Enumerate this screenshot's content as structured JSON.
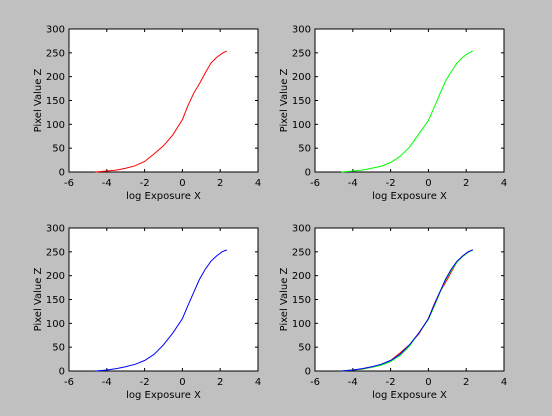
{
  "figure": {
    "background": "#c0c0c0"
  },
  "chart_data": [
    {
      "type": "line",
      "title": "",
      "xlabel": "log Exposure X",
      "ylabel": "Pixel Value Z",
      "xlim": [
        -6,
        4
      ],
      "ylim": [
        0,
        300
      ],
      "xticks": [
        -6,
        -4,
        -2,
        0,
        2,
        4
      ],
      "yticks": [
        0,
        50,
        100,
        150,
        200,
        250,
        300
      ],
      "grid": false,
      "series": [
        {
          "color": "#ff0000",
          "x": [
            -4.6,
            -4,
            -3.5,
            -3,
            -2.5,
            -2,
            -1.5,
            -1,
            -0.5,
            0,
            0.3,
            0.6,
            0.9,
            1.2,
            1.5,
            1.8,
            2.1,
            2.35
          ],
          "y": [
            0,
            2,
            4,
            8,
            13,
            22,
            38,
            55,
            78,
            110,
            140,
            165,
            185,
            207,
            228,
            240,
            249,
            254
          ]
        }
      ]
    },
    {
      "type": "line",
      "title": "",
      "xlabel": "log Exposure X",
      "ylabel": "Pixel Value Z",
      "xlim": [
        -6,
        4
      ],
      "ylim": [
        0,
        300
      ],
      "xticks": [
        -6,
        -4,
        -2,
        0,
        2,
        4
      ],
      "yticks": [
        0,
        50,
        100,
        150,
        200,
        250,
        300
      ],
      "grid": false,
      "series": [
        {
          "color": "#00ff00",
          "x": [
            -4.6,
            -4,
            -3.5,
            -3,
            -2.5,
            -2,
            -1.5,
            -1,
            -0.5,
            0,
            0.3,
            0.6,
            0.9,
            1.2,
            1.5,
            1.8,
            2.1,
            2.35
          ],
          "y": [
            0,
            2,
            4,
            8,
            12,
            20,
            33,
            52,
            80,
            108,
            135,
            163,
            190,
            210,
            228,
            240,
            249,
            254
          ]
        }
      ]
    },
    {
      "type": "line",
      "title": "",
      "xlabel": "log Exposure X",
      "ylabel": "Pixel Value Z",
      "xlim": [
        -6,
        4
      ],
      "ylim": [
        0,
        300
      ],
      "xticks": [
        -6,
        -4,
        -2,
        0,
        2,
        4
      ],
      "yticks": [
        0,
        50,
        100,
        150,
        200,
        250,
        300
      ],
      "grid": false,
      "series": [
        {
          "color": "#0000ff",
          "x": [
            -4.6,
            -4,
            -3.5,
            -3,
            -2.5,
            -2,
            -1.5,
            -1,
            -0.5,
            0,
            0.3,
            0.6,
            0.9,
            1.2,
            1.5,
            1.8,
            2.1,
            2.35
          ],
          "y": [
            0,
            2,
            5,
            9,
            14,
            22,
            35,
            55,
            80,
            110,
            138,
            165,
            192,
            213,
            230,
            241,
            250,
            254
          ]
        }
      ]
    },
    {
      "type": "line",
      "title": "",
      "xlabel": "log Exposure X",
      "ylabel": "Pixel Value Z",
      "xlim": [
        -6,
        4
      ],
      "ylim": [
        0,
        300
      ],
      "xticks": [
        -6,
        -4,
        -2,
        0,
        2,
        4
      ],
      "yticks": [
        0,
        50,
        100,
        150,
        200,
        250,
        300
      ],
      "grid": false,
      "series": [
        {
          "color": "#ff0000",
          "x": [
            -4.6,
            -4,
            -3.5,
            -3,
            -2.5,
            -2,
            -1.5,
            -1,
            -0.5,
            0,
            0.3,
            0.6,
            0.9,
            1.2,
            1.5,
            1.8,
            2.1,
            2.35
          ],
          "y": [
            0,
            2,
            4,
            8,
            13,
            22,
            38,
            55,
            78,
            110,
            140,
            165,
            185,
            207,
            228,
            240,
            249,
            254
          ]
        },
        {
          "color": "#00ff00",
          "x": [
            -4.6,
            -4,
            -3.5,
            -3,
            -2.5,
            -2,
            -1.5,
            -1,
            -0.5,
            0,
            0.3,
            0.6,
            0.9,
            1.2,
            1.5,
            1.8,
            2.1,
            2.35
          ],
          "y": [
            0,
            2,
            4,
            8,
            12,
            20,
            33,
            52,
            80,
            108,
            135,
            163,
            190,
            210,
            228,
            240,
            249,
            254
          ]
        },
        {
          "color": "#0000ff",
          "x": [
            -4.6,
            -4,
            -3.5,
            -3,
            -2.5,
            -2,
            -1.5,
            -1,
            -0.5,
            0,
            0.3,
            0.6,
            0.9,
            1.2,
            1.5,
            1.8,
            2.1,
            2.35
          ],
          "y": [
            0,
            2,
            5,
            9,
            14,
            22,
            35,
            55,
            80,
            110,
            138,
            165,
            192,
            213,
            230,
            241,
            250,
            254
          ]
        }
      ]
    }
  ]
}
